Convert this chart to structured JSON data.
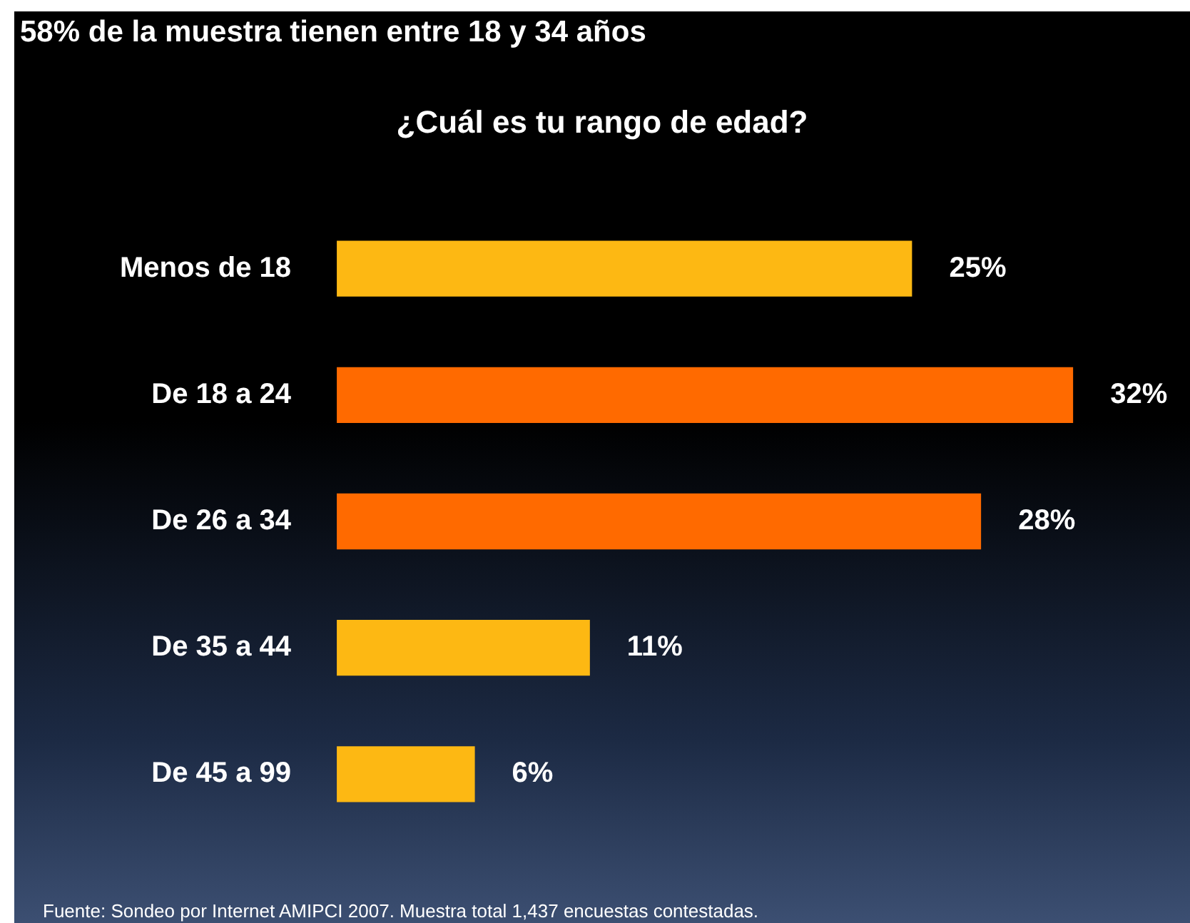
{
  "chart_data": {
    "type": "bar",
    "orientation": "horizontal",
    "title": "58% de la muestra tienen entre 18 y 34 años",
    "subtitle": "¿Cuál es tu rango de edad?",
    "categories": [
      "Menos de 18",
      "De 18 a 24",
      "De 26 a 34",
      "De 35 a 44",
      "De 45 a 99"
    ],
    "values": [
      25,
      32,
      28,
      11,
      6
    ],
    "colors": [
      "#fdb813",
      "#ff6a00",
      "#ff6a00",
      "#fdb813",
      "#fdb813"
    ],
    "value_labels": [
      "25%",
      "32%",
      "28%",
      "11%",
      "6%"
    ],
    "annotations": [
      "Fuente: Sondeo por Internet AMIPCI 2007. Muestra total 1,437 encuestas contestadas."
    ],
    "legend": false
  }
}
